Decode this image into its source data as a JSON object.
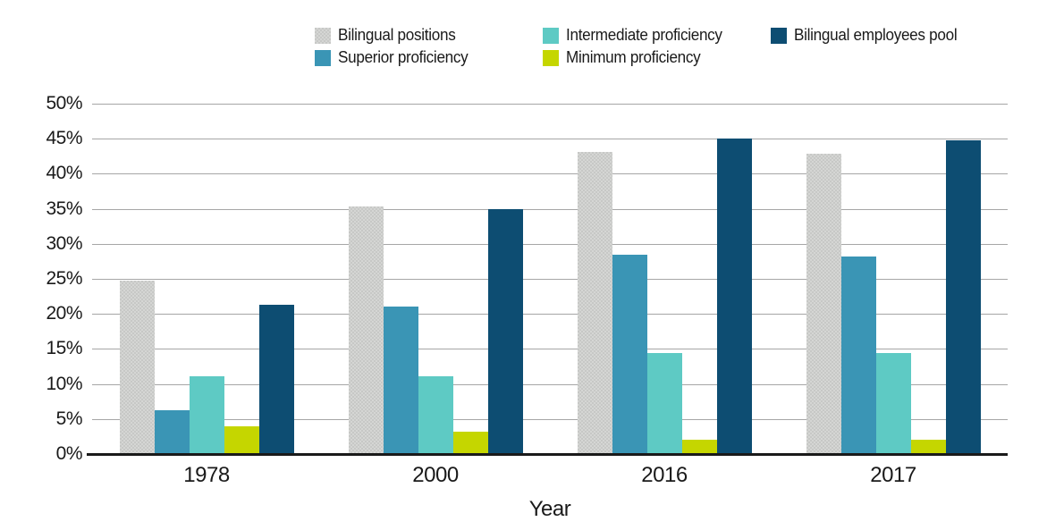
{
  "chart_data": {
    "type": "bar",
    "title": "",
    "xlabel": "Year",
    "ylabel": "",
    "ylim": [
      0,
      50
    ],
    "ytick_step": 5,
    "ytick_labels": [
      "50%",
      "45%",
      "40%",
      "35%",
      "30%",
      "25%",
      "20%",
      "15%",
      "10%",
      "5%",
      "0%"
    ],
    "grid": true,
    "legend_position": "top",
    "categories": [
      "1978",
      "2000",
      "2016",
      "2017"
    ],
    "series": [
      {
        "name": "Bilingual positions",
        "color": "#c7c8c6",
        "pattern": "check",
        "values": [
          24.7,
          35.3,
          43.1,
          42.8
        ]
      },
      {
        "name": "Superior proficiency",
        "color": "#3a95b5",
        "pattern": "solid",
        "values": [
          6.2,
          21.1,
          28.4,
          28.2
        ]
      },
      {
        "name": "Intermediate proficiency",
        "color": "#5ecac4",
        "pattern": "solid",
        "values": [
          11.1,
          11.1,
          14.4,
          14.4
        ]
      },
      {
        "name": "Minimum proficiency",
        "color": "#c5d600",
        "pattern": "solid",
        "values": [
          4.0,
          3.2,
          2.0,
          2.0
        ]
      },
      {
        "name": "Bilingual employees pool",
        "color": "#0d4d72",
        "pattern": "solid",
        "values": [
          21.3,
          34.9,
          45.0,
          44.8
        ]
      }
    ],
    "legend_order_row_major": [
      0,
      2,
      4,
      1,
      3
    ]
  },
  "colors": {
    "gridline": "#a6a6a6",
    "axis": "#1a1a1a",
    "text": "#1a1a1a",
    "background": "#ffffff"
  }
}
